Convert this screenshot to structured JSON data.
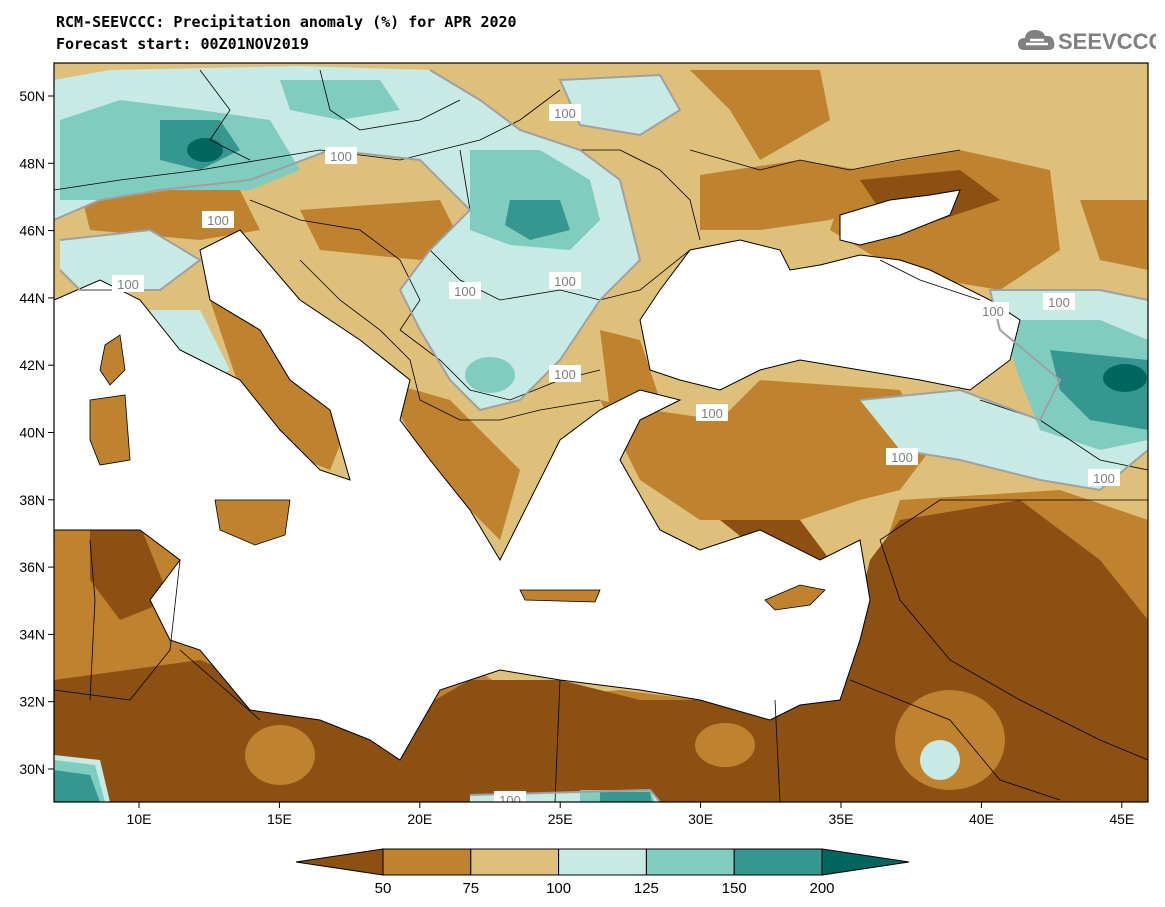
{
  "title_line1": "RCM-SEEVCCC: Precipitation anomaly (%) for APR 2020",
  "title_line2": "Forecast start: 00Z01NOV2019",
  "logo_text": "SEEVCCC",
  "lat_labels": [
    "50N",
    "48N",
    "46N",
    "44N",
    "42N",
    "40N",
    "38N",
    "36N",
    "34N",
    "32N",
    "30N"
  ],
  "lon_labels": [
    "10E",
    "15E",
    "20E",
    "25E",
    "30E",
    "35E",
    "40E",
    "45E"
  ],
  "contour_label": "100",
  "colorbar": {
    "colors": [
      "#8c5012",
      "#bf822e",
      "#dfc07b",
      "#c7eae4",
      "#80cdc0",
      "#369690",
      "#01665e"
    ],
    "labels": [
      "50",
      "75",
      "100",
      "125",
      "150",
      "200"
    ]
  },
  "colors": {
    "land_frame": "#dfc07b",
    "sea": "#ffffff",
    "border": "#000000",
    "contour": "#a0a0a0"
  }
}
